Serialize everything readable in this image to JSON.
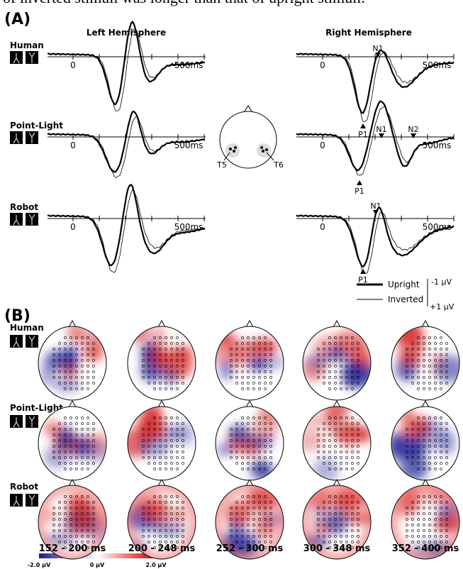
{
  "top_text": "of inverted stimuli was longer than that of upright stimuli.",
  "panel_a": {
    "label": "(A)",
    "left_title": "Left Hemisphere",
    "right_title": "Right Hemisphere",
    "rows": [
      {
        "name": "Human",
        "left": {
          "zero": "0",
          "end": "500ms"
        },
        "right": {
          "zero": "0",
          "end": "500ms",
          "peaks": [
            "N1",
            "P1"
          ]
        }
      },
      {
        "name": "Point-Light",
        "left": {
          "zero": "0",
          "end": "500ms"
        },
        "right": {
          "zero": "0",
          "end": "500ms",
          "peaks": [
            "N1",
            "N2",
            "P1"
          ]
        }
      },
      {
        "name": "Robot",
        "left": {
          "zero": "0",
          "end": "500ms"
        },
        "right": {
          "zero": "0",
          "end": "500ms",
          "peaks": [
            "N1",
            "P1"
          ]
        }
      }
    ],
    "electrodes": [
      "T5",
      "T6"
    ],
    "legend": [
      "Upright",
      "Inverted"
    ],
    "scale": [
      "-1 μV",
      "+1 μV"
    ]
  },
  "panel_b": {
    "label": "(B)",
    "rows": [
      "Human",
      "Point-Light",
      "Robot"
    ],
    "windows": [
      "152 - 200 ms",
      "200 - 248 ms",
      "252 - 300 ms",
      "300 - 348 ms",
      "352 - 400 ms"
    ],
    "colorbar": [
      "-2.0 μV",
      "0 μV",
      "2.0 μV"
    ]
  }
}
